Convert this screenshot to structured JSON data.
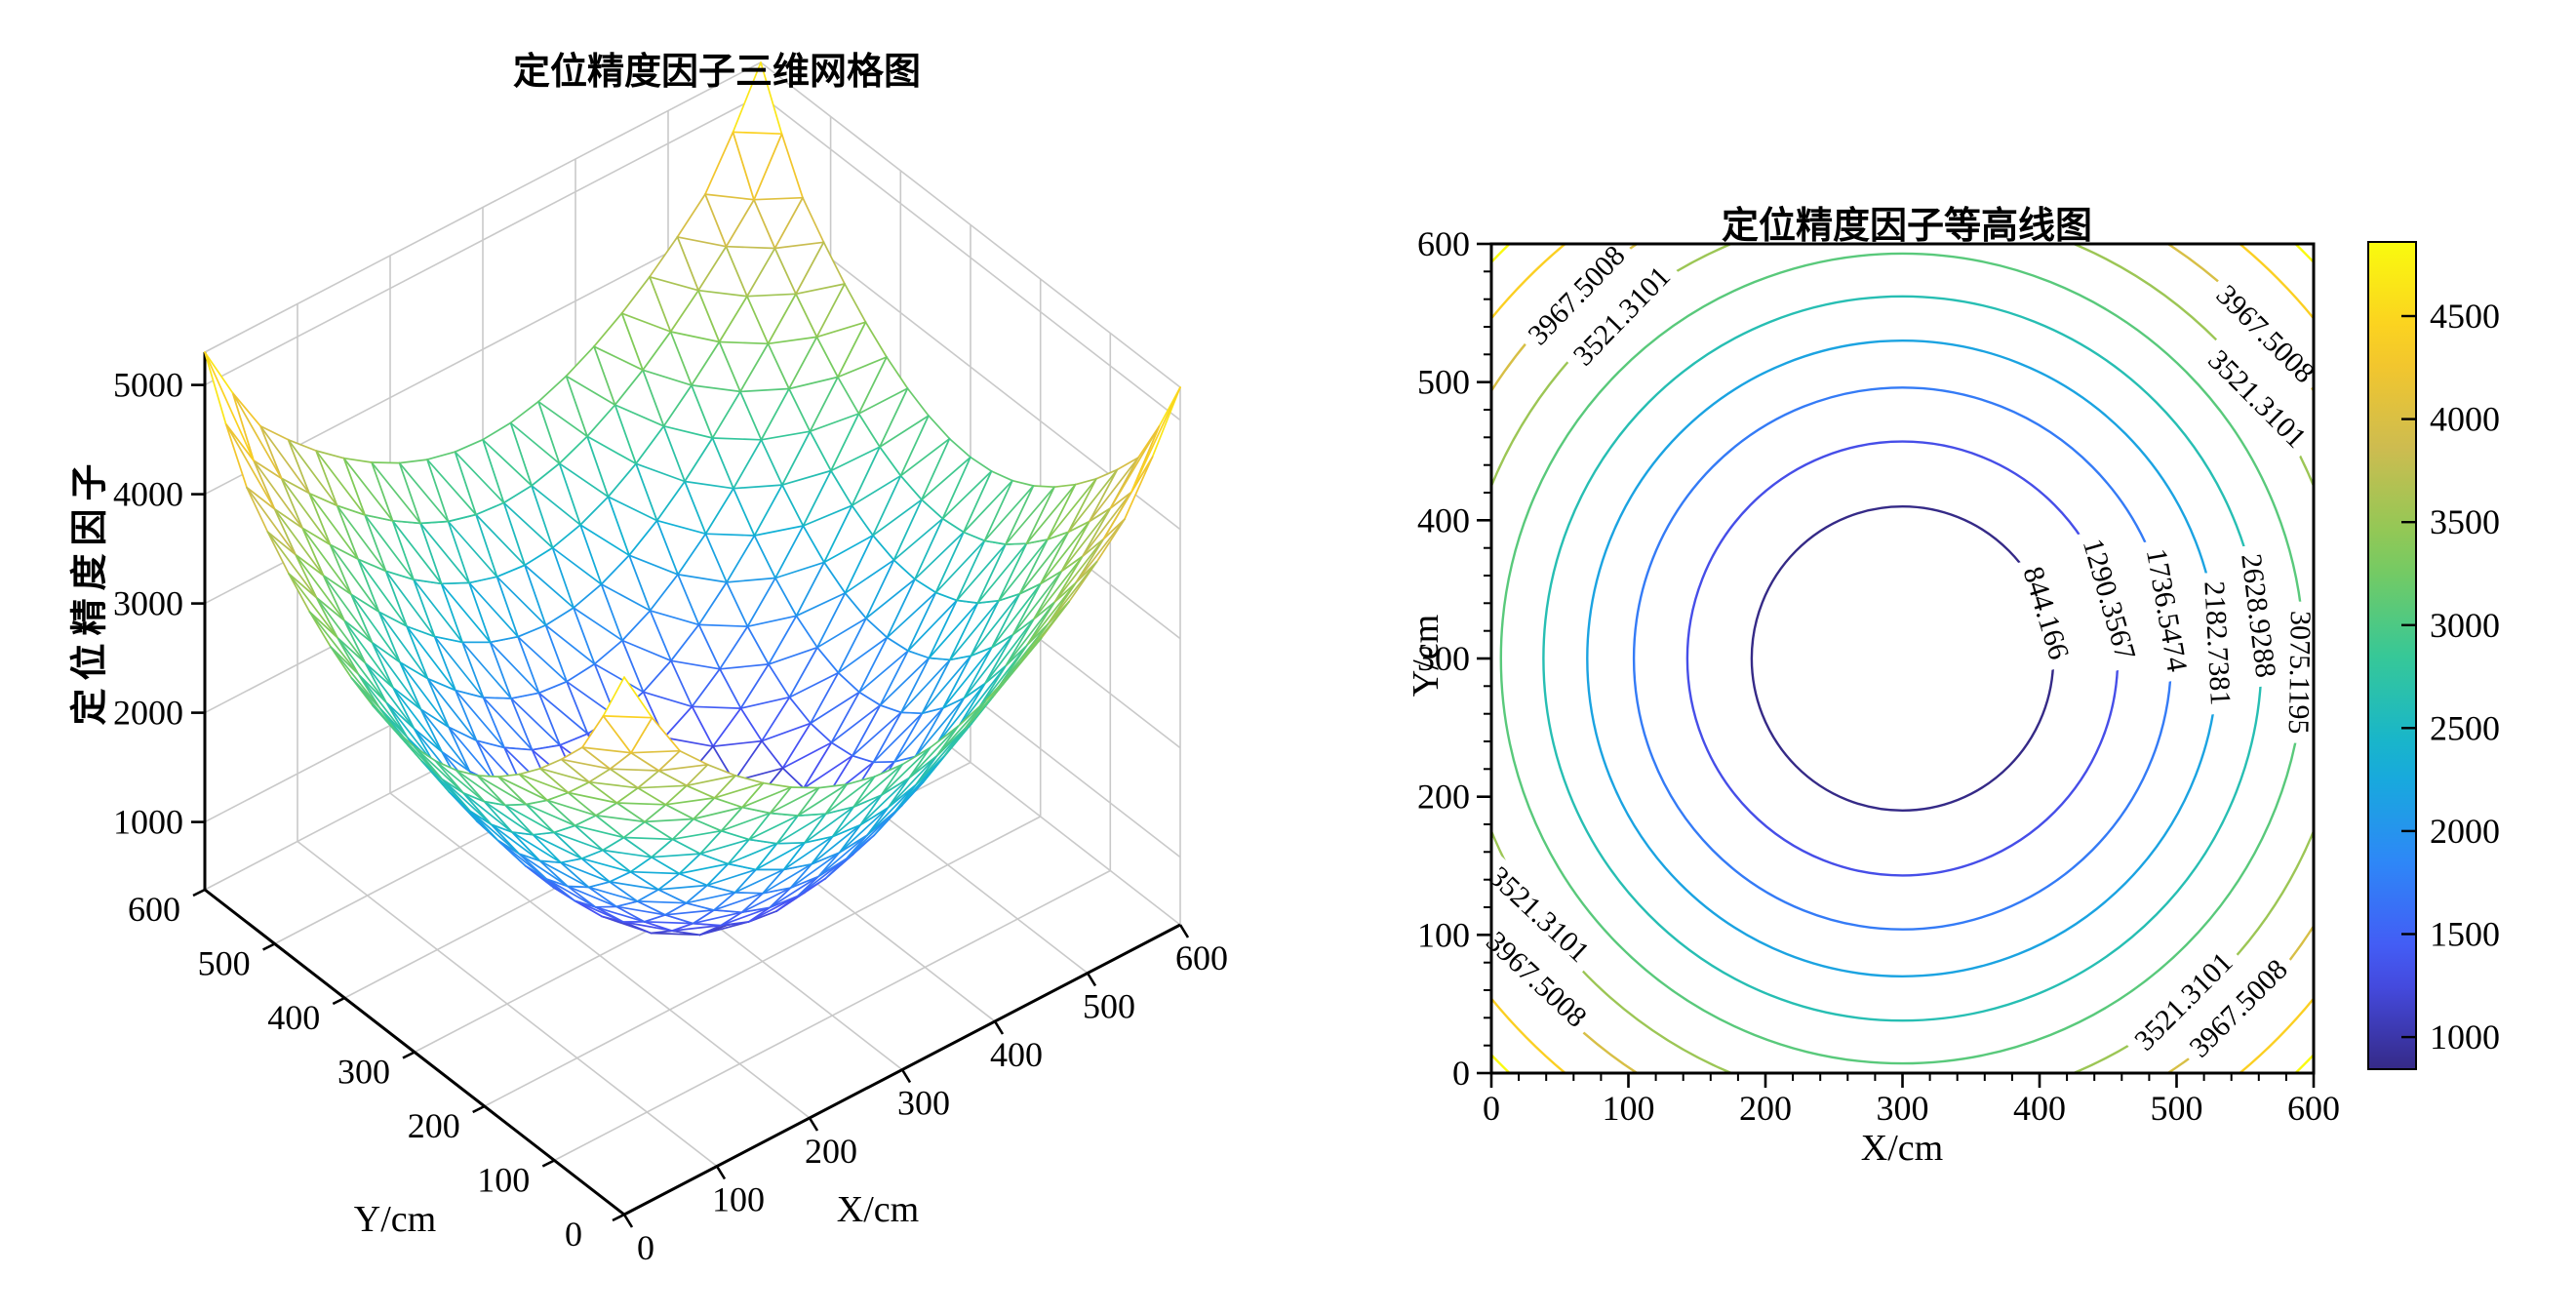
{
  "figure": {
    "background": "#ffffff"
  },
  "palette": {
    "parula": [
      [
        0.0,
        "#352a87"
      ],
      [
        0.125,
        "#4852f4"
      ],
      [
        0.25,
        "#2e87f7"
      ],
      [
        0.375,
        "#12b1d6"
      ],
      [
        0.5,
        "#37c897"
      ],
      [
        0.625,
        "#83cb57"
      ],
      [
        0.75,
        "#cdbc50"
      ],
      [
        0.875,
        "#fbc925"
      ],
      [
        1.0,
        "#f9fb0e"
      ]
    ],
    "grid": "#c9c9c9",
    "axis": "#000000"
  },
  "chart_data": [
    {
      "type": "surface-mesh-3d",
      "title": "定位精度因子三维网格图",
      "xlabel": "X/cm",
      "ylabel": "Y/cm",
      "zlabel": "定位精度因子",
      "x_range": [
        0,
        600
      ],
      "y_range": [
        0,
        600
      ],
      "z_range": [
        500,
        5300
      ],
      "x_ticks": [
        0,
        100,
        200,
        300,
        400,
        500,
        600
      ],
      "y_ticks": [
        0,
        100,
        200,
        300,
        400,
        500,
        600
      ],
      "z_ticks": [
        1000,
        2000,
        3000,
        4000,
        5000
      ],
      "grid_step_cm": 30,
      "surface": "radially symmetric bowl: z = f(distance from center (300,300)); minimum at center, yellow peaks ~5300 at the four corners",
      "radial_profile": [
        [
          0,
          500
        ],
        [
          110,
          844.166
        ],
        [
          157,
          1290.3567
        ],
        [
          196,
          1736.5474
        ],
        [
          230,
          2182.7381
        ],
        [
          262,
          2628.9288
        ],
        [
          293,
          3075.1195
        ],
        [
          325,
          3521.3101
        ],
        [
          357,
          3967.5008
        ],
        [
          388,
          4413.6915
        ],
        [
          424.3,
          5300
        ]
      ],
      "colormap": "parula",
      "view": "azimuth -37.5, elevation 30, wireframe mesh with hidden white faces, gray wall/floor grid"
    },
    {
      "type": "contour",
      "title": "定位精度因子等高线图",
      "xlabel": "X/cm",
      "ylabel": "Y/cm",
      "x_range": [
        0,
        600
      ],
      "y_range": [
        0,
        600
      ],
      "x_ticks": [
        0,
        100,
        200,
        300,
        400,
        500,
        600
      ],
      "y_ticks": [
        0,
        100,
        200,
        300,
        400,
        500,
        600
      ],
      "minor_tick_step": 20,
      "center": [
        300,
        300
      ],
      "levels": [
        844.166,
        1290.3567,
        1736.5474,
        2182.7381,
        2628.9288,
        3075.1195,
        3521.3101,
        3967.5008,
        4413.6915,
        4859.8822
      ],
      "level_radii_cm": [
        110,
        157,
        196,
        230,
        262,
        293,
        325,
        357,
        388,
        415
      ],
      "labels": [
        {
          "text": "3967.5008",
          "x": 62,
          "y": 563,
          "rot": -46
        },
        {
          "text": "3521.3101",
          "x": 95,
          "y": 548,
          "rot": -46
        },
        {
          "text": "3967.5008",
          "x": 565,
          "y": 535,
          "rot": 45
        },
        {
          "text": "3521.3101",
          "x": 559,
          "y": 488,
          "rot": 45
        },
        {
          "text": "844.166",
          "x": 405,
          "y": 333,
          "rot": 73
        },
        {
          "text": "1290.3567",
          "x": 451,
          "y": 343,
          "rot": 74
        },
        {
          "text": "1736.5474",
          "x": 493,
          "y": 335,
          "rot": 80
        },
        {
          "text": "2182.7381",
          "x": 530,
          "y": 311,
          "rot": 87
        },
        {
          "text": "2628.9288",
          "x": 560,
          "y": 331,
          "rot": 83
        },
        {
          "text": "3075.1195",
          "x": 590,
          "y": 290,
          "rot": 91
        },
        {
          "text": "3521.3101",
          "x": 35,
          "y": 115,
          "rot": 43
        },
        {
          "text": "3967.5008",
          "x": 33,
          "y": 68,
          "rot": 43
        },
        {
          "text": "3521.3101",
          "x": 505,
          "y": 52,
          "rot": -45
        },
        {
          "text": "3967.5008",
          "x": 545,
          "y": 47,
          "rot": -45
        }
      ],
      "colorbar": {
        "min": 844.166,
        "max": 4859.8822,
        "ticks": [
          1000,
          1500,
          2000,
          2500,
          3000,
          3500,
          4000,
          4500
        ],
        "colormap": "parula"
      }
    }
  ]
}
